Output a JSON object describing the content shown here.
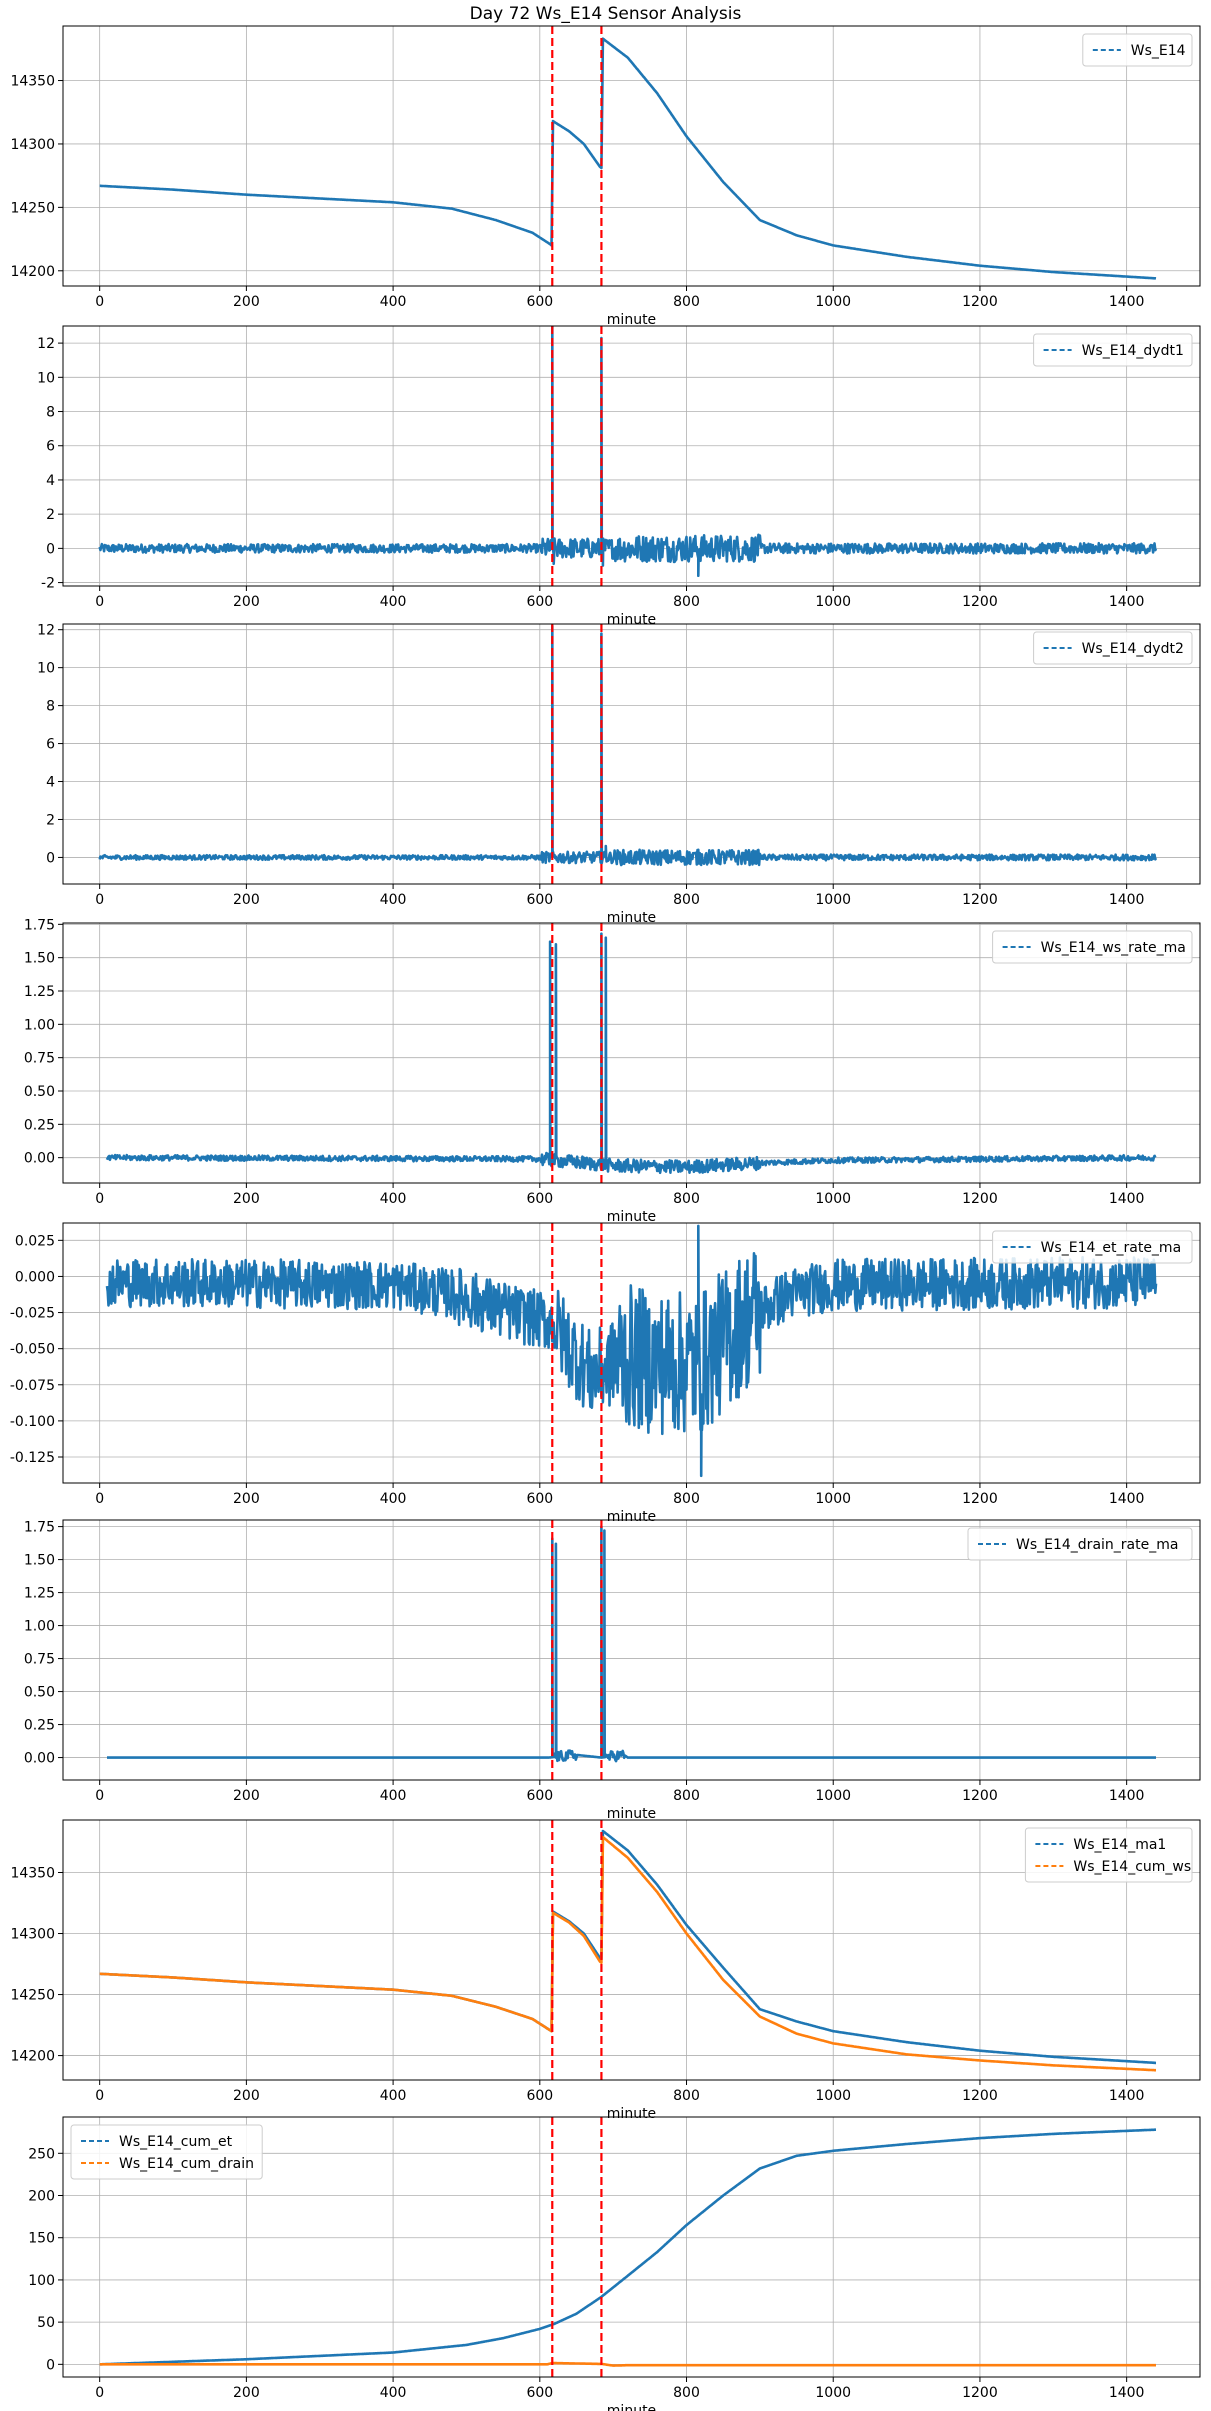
{
  "figure": {
    "title": "Day 72 Ws_E14 Sensor Analysis",
    "colors": {
      "blue": "#1f77b4",
      "orange": "#ff7f0e",
      "event": "#ff0000",
      "grid": "#b0b0b0"
    },
    "event_lines_x": [
      617,
      684
    ]
  },
  "chart_data": [
    {
      "type": "line",
      "title": "",
      "xlabel": "minute",
      "ylabel": "",
      "xlim": [
        -50,
        1500
      ],
      "ylim": [
        14188,
        14393
      ],
      "xticks": [
        0,
        200,
        400,
        600,
        800,
        1000,
        1200,
        1400
      ],
      "yticks": [
        14200,
        14250,
        14300,
        14350
      ],
      "legend": "top-right",
      "grid": true,
      "series": [
        {
          "name": "Ws_E14",
          "color": "#1f77b4",
          "points": [
            [
              0,
              14267
            ],
            [
              100,
              14264
            ],
            [
              200,
              14260
            ],
            [
              300,
              14257
            ],
            [
              400,
              14254
            ],
            [
              480,
              14249
            ],
            [
              540,
              14240
            ],
            [
              590,
              14230
            ],
            [
              614,
              14221
            ],
            [
              616,
              14220
            ],
            [
              618,
              14318
            ],
            [
              640,
              14310
            ],
            [
              660,
              14300
            ],
            [
              682,
              14282
            ],
            [
              684,
              14281
            ],
            [
              686,
              14383
            ],
            [
              720,
              14368
            ],
            [
              760,
              14340
            ],
            [
              800,
              14306
            ],
            [
              850,
              14270
            ],
            [
              900,
              14240
            ],
            [
              950,
              14228
            ],
            [
              1000,
              14220
            ],
            [
              1100,
              14211
            ],
            [
              1200,
              14204
            ],
            [
              1300,
              14199
            ],
            [
              1440,
              14194
            ]
          ]
        }
      ]
    },
    {
      "type": "line",
      "title": "",
      "xlabel": "minute",
      "ylabel": "",
      "xlim": [
        -50,
        1500
      ],
      "ylim": [
        -2.2,
        13.0
      ],
      "xticks": [
        0,
        200,
        400,
        600,
        800,
        1000,
        1200,
        1400
      ],
      "yticks": [
        -2,
        0,
        2,
        4,
        6,
        8,
        10,
        12
      ],
      "legend": "top-right",
      "grid": true,
      "series": [
        {
          "name": "Ws_E14_dydt1",
          "color": "#1f77b4",
          "noise": [
            [
              0,
              600,
              0.25
            ],
            [
              600,
              700,
              0.6
            ],
            [
              700,
              900,
              0.8
            ],
            [
              900,
              1440,
              0.3
            ]
          ],
          "spikes": [
            [
              617,
              13.0
            ],
            [
              619,
              -0.9
            ],
            [
              684,
              12.3
            ],
            [
              686,
              -1.0
            ],
            [
              816,
              -1.6
            ]
          ],
          "points": [
            [
              0,
              0
            ],
            [
              1440,
              0
            ]
          ]
        }
      ]
    },
    {
      "type": "line",
      "title": "",
      "xlabel": "minute",
      "ylabel": "",
      "xlim": [
        -50,
        1500
      ],
      "ylim": [
        -1.4,
        12.3
      ],
      "xticks": [
        0,
        200,
        400,
        600,
        800,
        1000,
        1200,
        1400
      ],
      "yticks": [
        0,
        2,
        4,
        6,
        8,
        10,
        12
      ],
      "legend": "top-right",
      "grid": true,
      "series": [
        {
          "name": "Ws_E14_dydt2",
          "color": "#1f77b4",
          "noise": [
            [
              0,
              600,
              0.12
            ],
            [
              600,
              700,
              0.3
            ],
            [
              700,
              900,
              0.4
            ],
            [
              900,
              1440,
              0.15
            ]
          ],
          "spikes": [
            [
              617,
              12.2
            ],
            [
              684,
              11.8
            ],
            [
              690,
              0.6
            ],
            [
              816,
              0.4
            ]
          ],
          "points": [
            [
              0,
              0
            ],
            [
              1440,
              0
            ]
          ]
        }
      ]
    },
    {
      "type": "line",
      "title": "",
      "xlabel": "minute",
      "ylabel": "",
      "xlim": [
        -50,
        1500
      ],
      "ylim": [
        -0.19,
        1.76
      ],
      "xticks": [
        0,
        200,
        400,
        600,
        800,
        1000,
        1200,
        1400
      ],
      "yticks": [
        0.0,
        0.25,
        0.5,
        0.75,
        1.0,
        1.25,
        1.5,
        1.75
      ],
      "legend": "top-right",
      "grid": true,
      "series": [
        {
          "name": "Ws_E14_ws_rate_ma",
          "color": "#1f77b4",
          "noise": [
            [
              10,
              600,
              0.02
            ],
            [
              600,
              900,
              0.05
            ],
            [
              900,
              1440,
              0.02
            ]
          ],
          "spikes": [
            [
              614,
              1.62
            ],
            [
              622,
              1.6
            ],
            [
              684,
              1.68
            ],
            [
              690,
              1.65
            ]
          ],
          "points": [
            [
              10,
              0
            ],
            [
              600,
              -0.01
            ],
            [
              700,
              -0.06
            ],
            [
              800,
              -0.07
            ],
            [
              900,
              -0.04
            ],
            [
              1000,
              -0.02
            ],
            [
              1440,
              0
            ]
          ]
        }
      ]
    },
    {
      "type": "line",
      "title": "",
      "xlabel": "minute",
      "ylabel": "",
      "xlim": [
        -50,
        1500
      ],
      "ylim": [
        -0.143,
        0.037
      ],
      "xticks": [
        0,
        200,
        400,
        600,
        800,
        1000,
        1200,
        1400
      ],
      "yticks": [
        -0.125,
        -0.1,
        -0.075,
        -0.05,
        -0.025,
        0.0,
        0.025
      ],
      "legend": "top-right",
      "grid": true,
      "series": [
        {
          "name": "Ws_E14_et_rate_ma",
          "color": "#1f77b4",
          "noise": [
            [
              10,
              480,
              0.017
            ],
            [
              480,
              620,
              0.02
            ],
            [
              620,
              700,
              0.03
            ],
            [
              700,
              900,
              0.05
            ],
            [
              900,
              1440,
              0.018
            ]
          ],
          "spikes": [
            [
              816,
              0.035
            ],
            [
              820,
              -0.138
            ]
          ],
          "points": [
            [
              10,
              -0.004
            ],
            [
              400,
              -0.006
            ],
            [
              480,
              -0.012
            ],
            [
              560,
              -0.025
            ],
            [
              617,
              -0.032
            ],
            [
              650,
              -0.055
            ],
            [
              670,
              -0.068
            ],
            [
              684,
              -0.065
            ],
            [
              716,
              -0.055
            ],
            [
              760,
              -0.06
            ],
            [
              820,
              -0.06
            ],
            [
              880,
              -0.03
            ],
            [
              940,
              -0.012
            ],
            [
              1000,
              -0.006
            ],
            [
              1440,
              -0.004
            ]
          ]
        }
      ]
    },
    {
      "type": "line",
      "title": "",
      "xlabel": "minute",
      "ylabel": "",
      "xlim": [
        -50,
        1500
      ],
      "ylim": [
        -0.17,
        1.8
      ],
      "xticks": [
        0,
        200,
        400,
        600,
        800,
        1000,
        1200,
        1400
      ],
      "yticks": [
        0.0,
        0.25,
        0.5,
        0.75,
        1.0,
        1.25,
        1.5,
        1.75
      ],
      "legend": "top-right",
      "grid": true,
      "series": [
        {
          "name": "Ws_E14_drain_rate_ma",
          "color": "#1f77b4",
          "noise": [
            [
              620,
              650,
              0.04
            ],
            [
              690,
              715,
              0.04
            ]
          ],
          "spikes": [
            [
              617,
              1.66
            ],
            [
              622,
              1.62
            ],
            [
              684,
              1.75
            ],
            [
              688,
              1.72
            ]
          ],
          "points": [
            [
              10,
              0
            ],
            [
              612,
              0
            ],
            [
              650,
              0.02
            ],
            [
              684,
              0
            ],
            [
              715,
              0.02
            ],
            [
              720,
              0
            ],
            [
              1440,
              0
            ]
          ]
        }
      ]
    },
    {
      "type": "line",
      "title": "",
      "xlabel": "minute",
      "ylabel": "",
      "xlim": [
        -50,
        1500
      ],
      "ylim": [
        14180,
        14393
      ],
      "xticks": [
        0,
        200,
        400,
        600,
        800,
        1000,
        1200,
        1400
      ],
      "yticks": [
        14200,
        14250,
        14300,
        14350
      ],
      "legend": "top-right",
      "grid": true,
      "series": [
        {
          "name": "Ws_E14_ma1",
          "color": "#1f77b4",
          "points": [
            [
              0,
              14267
            ],
            [
              100,
              14264
            ],
            [
              200,
              14260
            ],
            [
              300,
              14257
            ],
            [
              400,
              14254
            ],
            [
              480,
              14249
            ],
            [
              540,
              14240
            ],
            [
              590,
              14230
            ],
            [
              616,
              14220
            ],
            [
              618,
              14318
            ],
            [
              640,
              14310
            ],
            [
              660,
              14300
            ],
            [
              682,
              14280
            ],
            [
              684,
              14279
            ],
            [
              686,
              14384
            ],
            [
              720,
              14368
            ],
            [
              760,
              14340
            ],
            [
              800,
              14307
            ],
            [
              850,
              14272
            ],
            [
              900,
              14238
            ],
            [
              950,
              14228
            ],
            [
              1000,
              14220
            ],
            [
              1100,
              14211
            ],
            [
              1200,
              14204
            ],
            [
              1300,
              14199
            ],
            [
              1440,
              14194
            ]
          ]
        },
        {
          "name": "Ws_E14_cum_ws",
          "color": "#ff7f0e",
          "points": [
            [
              0,
              14267
            ],
            [
              100,
              14264
            ],
            [
              200,
              14260
            ],
            [
              300,
              14257
            ],
            [
              400,
              14254
            ],
            [
              480,
              14249
            ],
            [
              540,
              14240
            ],
            [
              590,
              14230
            ],
            [
              616,
              14220
            ],
            [
              618,
              14317
            ],
            [
              640,
              14309
            ],
            [
              660,
              14298
            ],
            [
              682,
              14277
            ],
            [
              684,
              14276
            ],
            [
              686,
              14379
            ],
            [
              720,
              14362
            ],
            [
              760,
              14334
            ],
            [
              800,
              14300
            ],
            [
              850,
              14262
            ],
            [
              900,
              14232
            ],
            [
              950,
              14218
            ],
            [
              1000,
              14210
            ],
            [
              1100,
              14201
            ],
            [
              1200,
              14196
            ],
            [
              1300,
              14192
            ],
            [
              1440,
              14188
            ]
          ]
        }
      ]
    },
    {
      "type": "line",
      "title": "",
      "xlabel": "minute",
      "ylabel": "",
      "xlim": [
        -50,
        1500
      ],
      "ylim": [
        -15,
        293
      ],
      "xticks": [
        0,
        200,
        400,
        600,
        800,
        1000,
        1200,
        1400
      ],
      "yticks": [
        0,
        50,
        100,
        150,
        200,
        250
      ],
      "legend": "top-left",
      "grid": true,
      "series": [
        {
          "name": "Ws_E14_cum_et",
          "color": "#1f77b4",
          "points": [
            [
              0,
              0
            ],
            [
              100,
              3
            ],
            [
              200,
              6
            ],
            [
              300,
              10
            ],
            [
              400,
              14
            ],
            [
              500,
              23
            ],
            [
              550,
              31
            ],
            [
              600,
              42
            ],
            [
              620,
              48
            ],
            [
              650,
              60
            ],
            [
              684,
              80
            ],
            [
              720,
              105
            ],
            [
              760,
              133
            ],
            [
              800,
              165
            ],
            [
              850,
              200
            ],
            [
              900,
              232
            ],
            [
              950,
              247
            ],
            [
              1000,
              253
            ],
            [
              1100,
              261
            ],
            [
              1200,
              268
            ],
            [
              1300,
              273
            ],
            [
              1440,
              278
            ]
          ]
        },
        {
          "name": "Ws_E14_cum_drain",
          "color": "#ff7f0e",
          "points": [
            [
              0,
              0
            ],
            [
              610,
              0
            ],
            [
              617,
              1.5
            ],
            [
              684,
              0.5
            ],
            [
              700,
              -1.5
            ],
            [
              720,
              -1.0
            ],
            [
              1440,
              -1.0
            ]
          ]
        }
      ]
    }
  ]
}
